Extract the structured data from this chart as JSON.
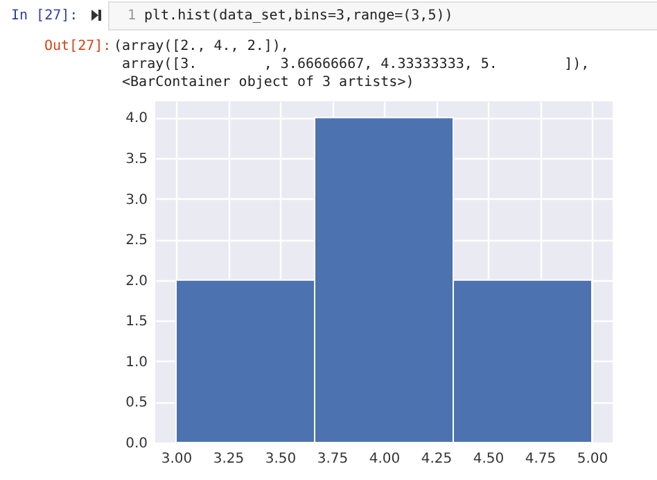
{
  "chart_data": {
    "type": "histogram",
    "annotations": [
      "In [27]:",
      "1",
      "plt.hist(data_set,bins=3,range=(3,5))",
      "Out[27]:",
      "(array([2., 4., 2.]),",
      " array([3.        , 3.66666667, 4.33333333, 5.        ]),",
      " <BarContainer object of 3 artists>)"
    ],
    "bins": [
      3,
      3.66666667,
      4.33333333,
      5
    ],
    "values": [
      2,
      4,
      2
    ],
    "color": "#4c72b0",
    "xlim": [
      2.9,
      5.1
    ],
    "ylim": [
      0,
      4.2
    ],
    "xticks": [
      {
        "value": 3,
        "label": "3.00"
      },
      {
        "value": 3.25,
        "label": "3.25"
      },
      {
        "value": 3.5,
        "label": "3.50"
      },
      {
        "value": 3.75,
        "label": "3.75"
      },
      {
        "value": 4,
        "label": "4.00"
      },
      {
        "value": 4.25,
        "label": "4.25"
      },
      {
        "value": 4.5,
        "label": "4.50"
      },
      {
        "value": 4.75,
        "label": "4.75"
      },
      {
        "value": 5,
        "label": "5.00"
      }
    ],
    "yticks": [
      {
        "value": 0,
        "label": "0.0"
      },
      {
        "value": 0.5,
        "label": "0.5"
      },
      {
        "value": 1,
        "label": "1.0"
      },
      {
        "value": 1.5,
        "label": "1.5"
      },
      {
        "value": 2,
        "label": "2.0"
      },
      {
        "value": 2.5,
        "label": "2.5"
      },
      {
        "value": 3,
        "label": "3.0"
      },
      {
        "value": 3.5,
        "label": "3.5"
      },
      {
        "value": 4,
        "label": "4.0"
      }
    ],
    "grid": true
  }
}
